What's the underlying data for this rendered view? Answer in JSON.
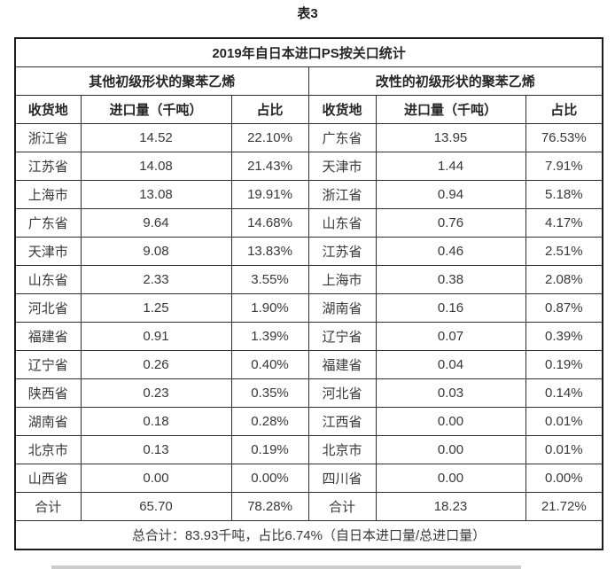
{
  "page": {
    "title": "表3"
  },
  "table": {
    "title": "2019年自日本进口PS按关口统计",
    "groups": [
      {
        "label": "其他初级形状的聚苯乙烯"
      },
      {
        "label": "改性的初级形状的聚苯乙烯"
      }
    ],
    "columns": [
      "收货地",
      "进口量（千吨）",
      "占比"
    ],
    "rows": [
      [
        "浙江省",
        "14.52",
        "22.10%",
        "广东省",
        "13.95",
        "76.53%"
      ],
      [
        "江苏省",
        "14.08",
        "21.43%",
        "天津市",
        "1.44",
        "7.91%"
      ],
      [
        "上海市",
        "13.08",
        "19.91%",
        "浙江省",
        "0.94",
        "5.18%"
      ],
      [
        "广东省",
        "9.64",
        "14.68%",
        "山东省",
        "0.76",
        "4.17%"
      ],
      [
        "天津市",
        "9.08",
        "13.83%",
        "江苏省",
        "0.46",
        "2.51%"
      ],
      [
        "山东省",
        "2.33",
        "3.55%",
        "上海市",
        "0.38",
        "2.08%"
      ],
      [
        "河北省",
        "1.25",
        "1.90%",
        "湖南省",
        "0.16",
        "0.87%"
      ],
      [
        "福建省",
        "0.91",
        "1.39%",
        "辽宁省",
        "0.07",
        "0.39%"
      ],
      [
        "辽宁省",
        "0.26",
        "0.40%",
        "福建省",
        "0.04",
        "0.19%"
      ],
      [
        "陕西省",
        "0.23",
        "0.35%",
        "河北省",
        "0.03",
        "0.14%"
      ],
      [
        "湖南省",
        "0.18",
        "0.28%",
        "江西省",
        "0.00",
        "0.01%"
      ],
      [
        "北京市",
        "0.13",
        "0.19%",
        "北京市",
        "0.00",
        "0.01%"
      ],
      [
        "山西省",
        "0.00",
        "0.00%",
        "四川省",
        "0.00",
        "0.00%"
      ],
      [
        "合计",
        "65.70",
        "78.28%",
        "合计",
        "18.23",
        "21.72%"
      ]
    ],
    "footer": "总合计：83.93千吨，占比6.74%（自日本进口量/总进口量）"
  }
}
